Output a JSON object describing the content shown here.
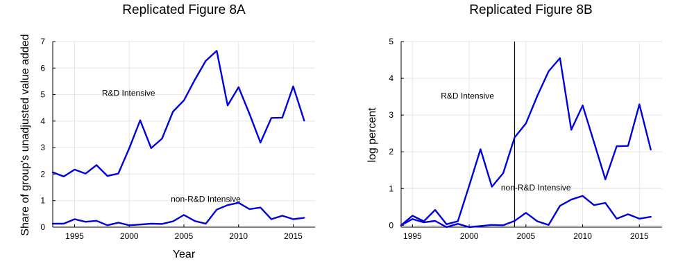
{
  "chart_data": [
    {
      "type": "line",
      "title": "Replicated Figure 8A",
      "xlabel": "Year",
      "ylabel": "Share of group's unadjusted value added",
      "xlim": [
        1993,
        2017
      ],
      "ylim": [
        0,
        7
      ],
      "xticks": [
        1995,
        2000,
        2005,
        2010,
        2015
      ],
      "yticks": [
        0,
        1,
        2,
        3,
        4,
        5,
        6,
        7
      ],
      "grid": true,
      "legend": "none",
      "line_color": "#0000dd",
      "x": [
        1993,
        1994,
        1995,
        1996,
        1997,
        1998,
        1999,
        2000,
        2001,
        2002,
        2003,
        2004,
        2005,
        2006,
        2007,
        2008,
        2009,
        2010,
        2011,
        2012,
        2013,
        2014,
        2015,
        2016
      ],
      "series": [
        {
          "values": [
            2.07,
            1.91,
            2.17,
            2.02,
            2.34,
            1.93,
            2.02,
            2.98,
            4.03,
            2.98,
            3.34,
            4.36,
            4.78,
            5.56,
            6.27,
            6.65,
            4.59,
            5.28,
            4.27,
            3.19,
            4.12,
            4.13,
            5.31,
            4.02
          ]
        },
        {
          "values": [
            0.13,
            0.13,
            0.3,
            0.2,
            0.24,
            0.07,
            0.17,
            0.07,
            0.1,
            0.13,
            0.12,
            0.22,
            0.46,
            0.23,
            0.13,
            0.66,
            0.83,
            0.92,
            0.68,
            0.74,
            0.3,
            0.43,
            0.3,
            0.35
          ]
        }
      ],
      "annotations": [
        {
          "text": "R&D Intensive",
          "x": 1997.5,
          "y": 4.95
        },
        {
          "text": "non-R&D Intensive",
          "x": 2003.8,
          "y": 0.95
        }
      ]
    },
    {
      "type": "line",
      "title": "Replicated Figure 8B",
      "xlabel": "",
      "ylabel": "log percent",
      "xlim": [
        1994,
        2017
      ],
      "ylim": [
        -0.05,
        5
      ],
      "xticks": [
        1995,
        2000,
        2005,
        2010,
        2015
      ],
      "yticks": [
        0,
        1,
        2,
        3,
        4,
        5
      ],
      "grid": true,
      "legend": "none",
      "line_color": "#0000dd",
      "vline": 2004,
      "x": [
        1994,
        1995,
        1996,
        1997,
        1998,
        1999,
        2000,
        2001,
        2002,
        2003,
        2004,
        2005,
        2006,
        2007,
        2008,
        2009,
        2010,
        2011,
        2012,
        2013,
        2014,
        2015,
        2016
      ],
      "series": [
        {
          "values": [
            0.0,
            0.26,
            0.11,
            0.42,
            0.03,
            0.11,
            1.08,
            2.07,
            1.05,
            1.42,
            2.39,
            2.77,
            3.52,
            4.19,
            4.55,
            2.6,
            3.26,
            2.26,
            1.25,
            2.15,
            2.16,
            3.29,
            2.06
          ]
        },
        {
          "values": [
            0.0,
            0.17,
            0.08,
            0.12,
            -0.05,
            0.04,
            -0.05,
            -0.02,
            0.01,
            0.0,
            0.12,
            0.34,
            0.11,
            0.01,
            0.53,
            0.7,
            0.8,
            0.55,
            0.61,
            0.18,
            0.3,
            0.18,
            0.23
          ]
        }
      ],
      "annotations": [
        {
          "text": "R&D Intensive",
          "x": 1997.5,
          "y": 3.45
        },
        {
          "text": "non-R&D Intensive",
          "x": 2002.8,
          "y": 0.95
        }
      ]
    }
  ]
}
